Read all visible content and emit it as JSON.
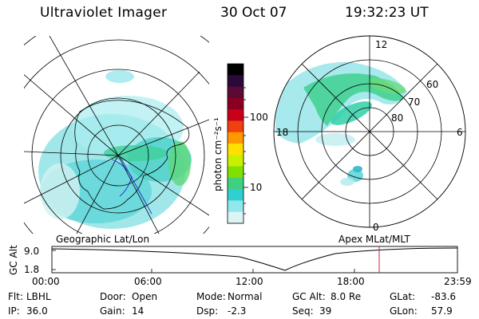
{
  "header": {
    "title": "Ultraviolet Imager",
    "date": "30 Oct 07",
    "time": "19:32:23 UT"
  },
  "colorbar": {
    "unit_label": "photon cm⁻²s⁻¹",
    "ticks": [
      "100",
      "10"
    ],
    "colors": [
      "#000000",
      "#2a0a3a",
      "#5a0a35",
      "#8a0020",
      "#c8001a",
      "#f04010",
      "#ff9900",
      "#ffe000",
      "#c8f000",
      "#80e000",
      "#40d080",
      "#30d0d0",
      "#90e8ee",
      "#ddf4f6"
    ]
  },
  "panels": {
    "left_caption": "Geographic Lat/Lon",
    "right_caption": "Apex MLat/MLT",
    "right_labels": {
      "mlt": [
        "12",
        "18",
        "6",
        "0"
      ],
      "mlat": [
        "60",
        "70",
        "80"
      ]
    }
  },
  "timeline": {
    "y_axis_label": "GC Alt",
    "y_ticks": [
      "9.0",
      "1.8"
    ],
    "x_ticks": [
      "00:00",
      "06:00",
      "12:00",
      "18:00",
      "23:59"
    ],
    "marker_color": "#cc2040"
  },
  "info": {
    "filter": {
      "label": "Flt:",
      "value": "LBHL"
    },
    "door": {
      "label": "Door:",
      "value": "Open"
    },
    "mode": {
      "label": "Mode:",
      "value": "Normal"
    },
    "gc_alt": {
      "label": "GC Alt:",
      "value": "8.0 Re"
    },
    "glat": {
      "label": "GLat:",
      "value": "-83.6"
    },
    "ip": {
      "label": "IP:",
      "value": "36.0"
    },
    "gain": {
      "label": "Gain:",
      "value": "14"
    },
    "dsp": {
      "label": "Dsp:",
      "value": "-2.3"
    },
    "seq": {
      "label": "Seq:",
      "value": "39"
    },
    "glon": {
      "label": "GLon:",
      "value": "57.9"
    }
  }
}
